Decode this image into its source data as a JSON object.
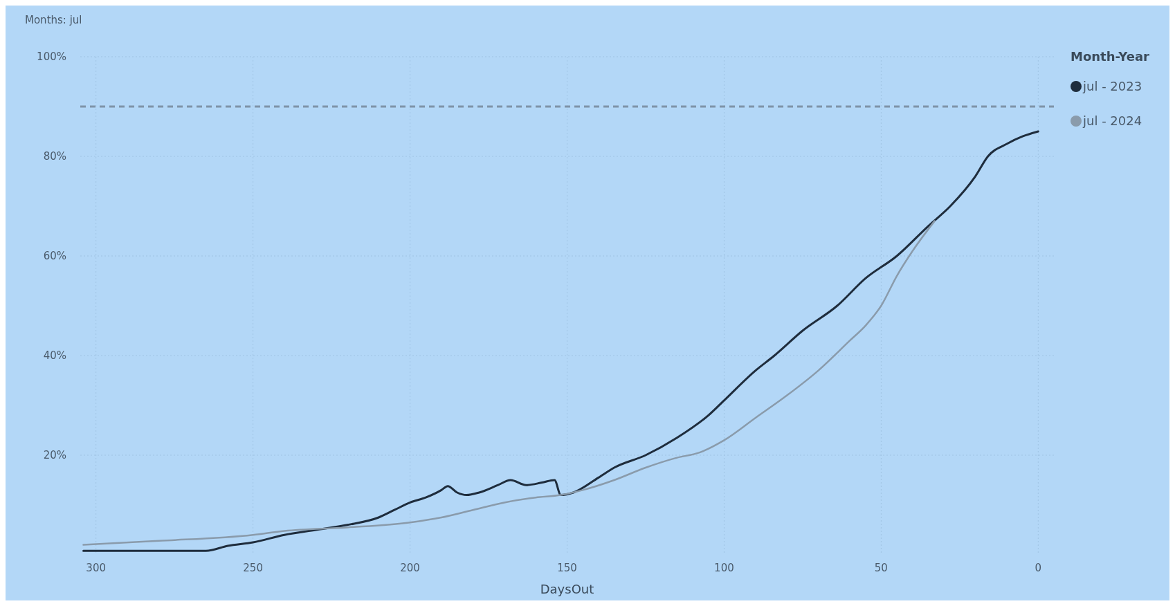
{
  "chart_data": {
    "type": "line",
    "title": "Months: jul",
    "xlabel": "DaysOut",
    "legend_title": "Month-Year",
    "legend": "top right",
    "grid": true,
    "marker": "none",
    "line_style": "solid",
    "xlim": [
      305,
      -5
    ],
    "xticks": [
      300,
      250,
      200,
      150,
      100,
      50,
      0
    ],
    "ylim": [
      0,
      100
    ],
    "yticks": [
      {
        "value": 20,
        "label": "20%"
      },
      {
        "value": 40,
        "label": "40%"
      },
      {
        "value": 60,
        "label": "60%"
      },
      {
        "value": 80,
        "label": "80%"
      },
      {
        "value": 100,
        "label": "100%"
      }
    ],
    "ref_lines": [
      {
        "axis": "y",
        "value": 90,
        "label": null,
        "color": "#7f93a8",
        "line_style": "dashed"
      }
    ],
    "series": [
      {
        "name": "jul - 2023",
        "color": "#1f2d3d",
        "x": [
          304,
          290,
          275,
          265,
          258,
          250,
          240,
          230,
          220,
          210,
          205,
          200,
          195,
          190,
          188,
          185,
          182,
          178,
          172,
          168,
          163,
          158,
          154,
          152,
          148,
          140,
          135,
          125,
          115,
          105,
          100,
          90,
          84,
          75,
          64,
          55,
          45,
          35,
          28,
          20,
          16,
          10,
          5,
          0
        ],
        "values": [
          0.8,
          0.8,
          0.8,
          0.8,
          1.8,
          2.5,
          4,
          5,
          6,
          7.5,
          9,
          10.5,
          11.5,
          13,
          13.8,
          12.5,
          12,
          12.5,
          14,
          15,
          14,
          14.5,
          15,
          12,
          12.5,
          15.5,
          17.5,
          20,
          23.5,
          28,
          31,
          37,
          40,
          45,
          50,
          55.5,
          60,
          66,
          70,
          76,
          80,
          82.5,
          84,
          85
        ]
      },
      {
        "name": "jul - 2024",
        "color": "#8a9bab",
        "x": [
          304,
          280,
          250,
          240,
          220,
          200,
          190,
          180,
          170,
          160,
          152,
          145,
          135,
          125,
          115,
          108,
          100,
          90,
          80,
          70,
          60,
          55,
          50,
          45,
          40,
          33
        ],
        "values": [
          2,
          2.8,
          4,
          4.8,
          5.5,
          6.5,
          7.5,
          9,
          10.5,
          11.5,
          12,
          13,
          15,
          17.5,
          19.5,
          20.5,
          23,
          27.5,
          32,
          37,
          43,
          46,
          50,
          56,
          61,
          67
        ]
      }
    ]
  }
}
